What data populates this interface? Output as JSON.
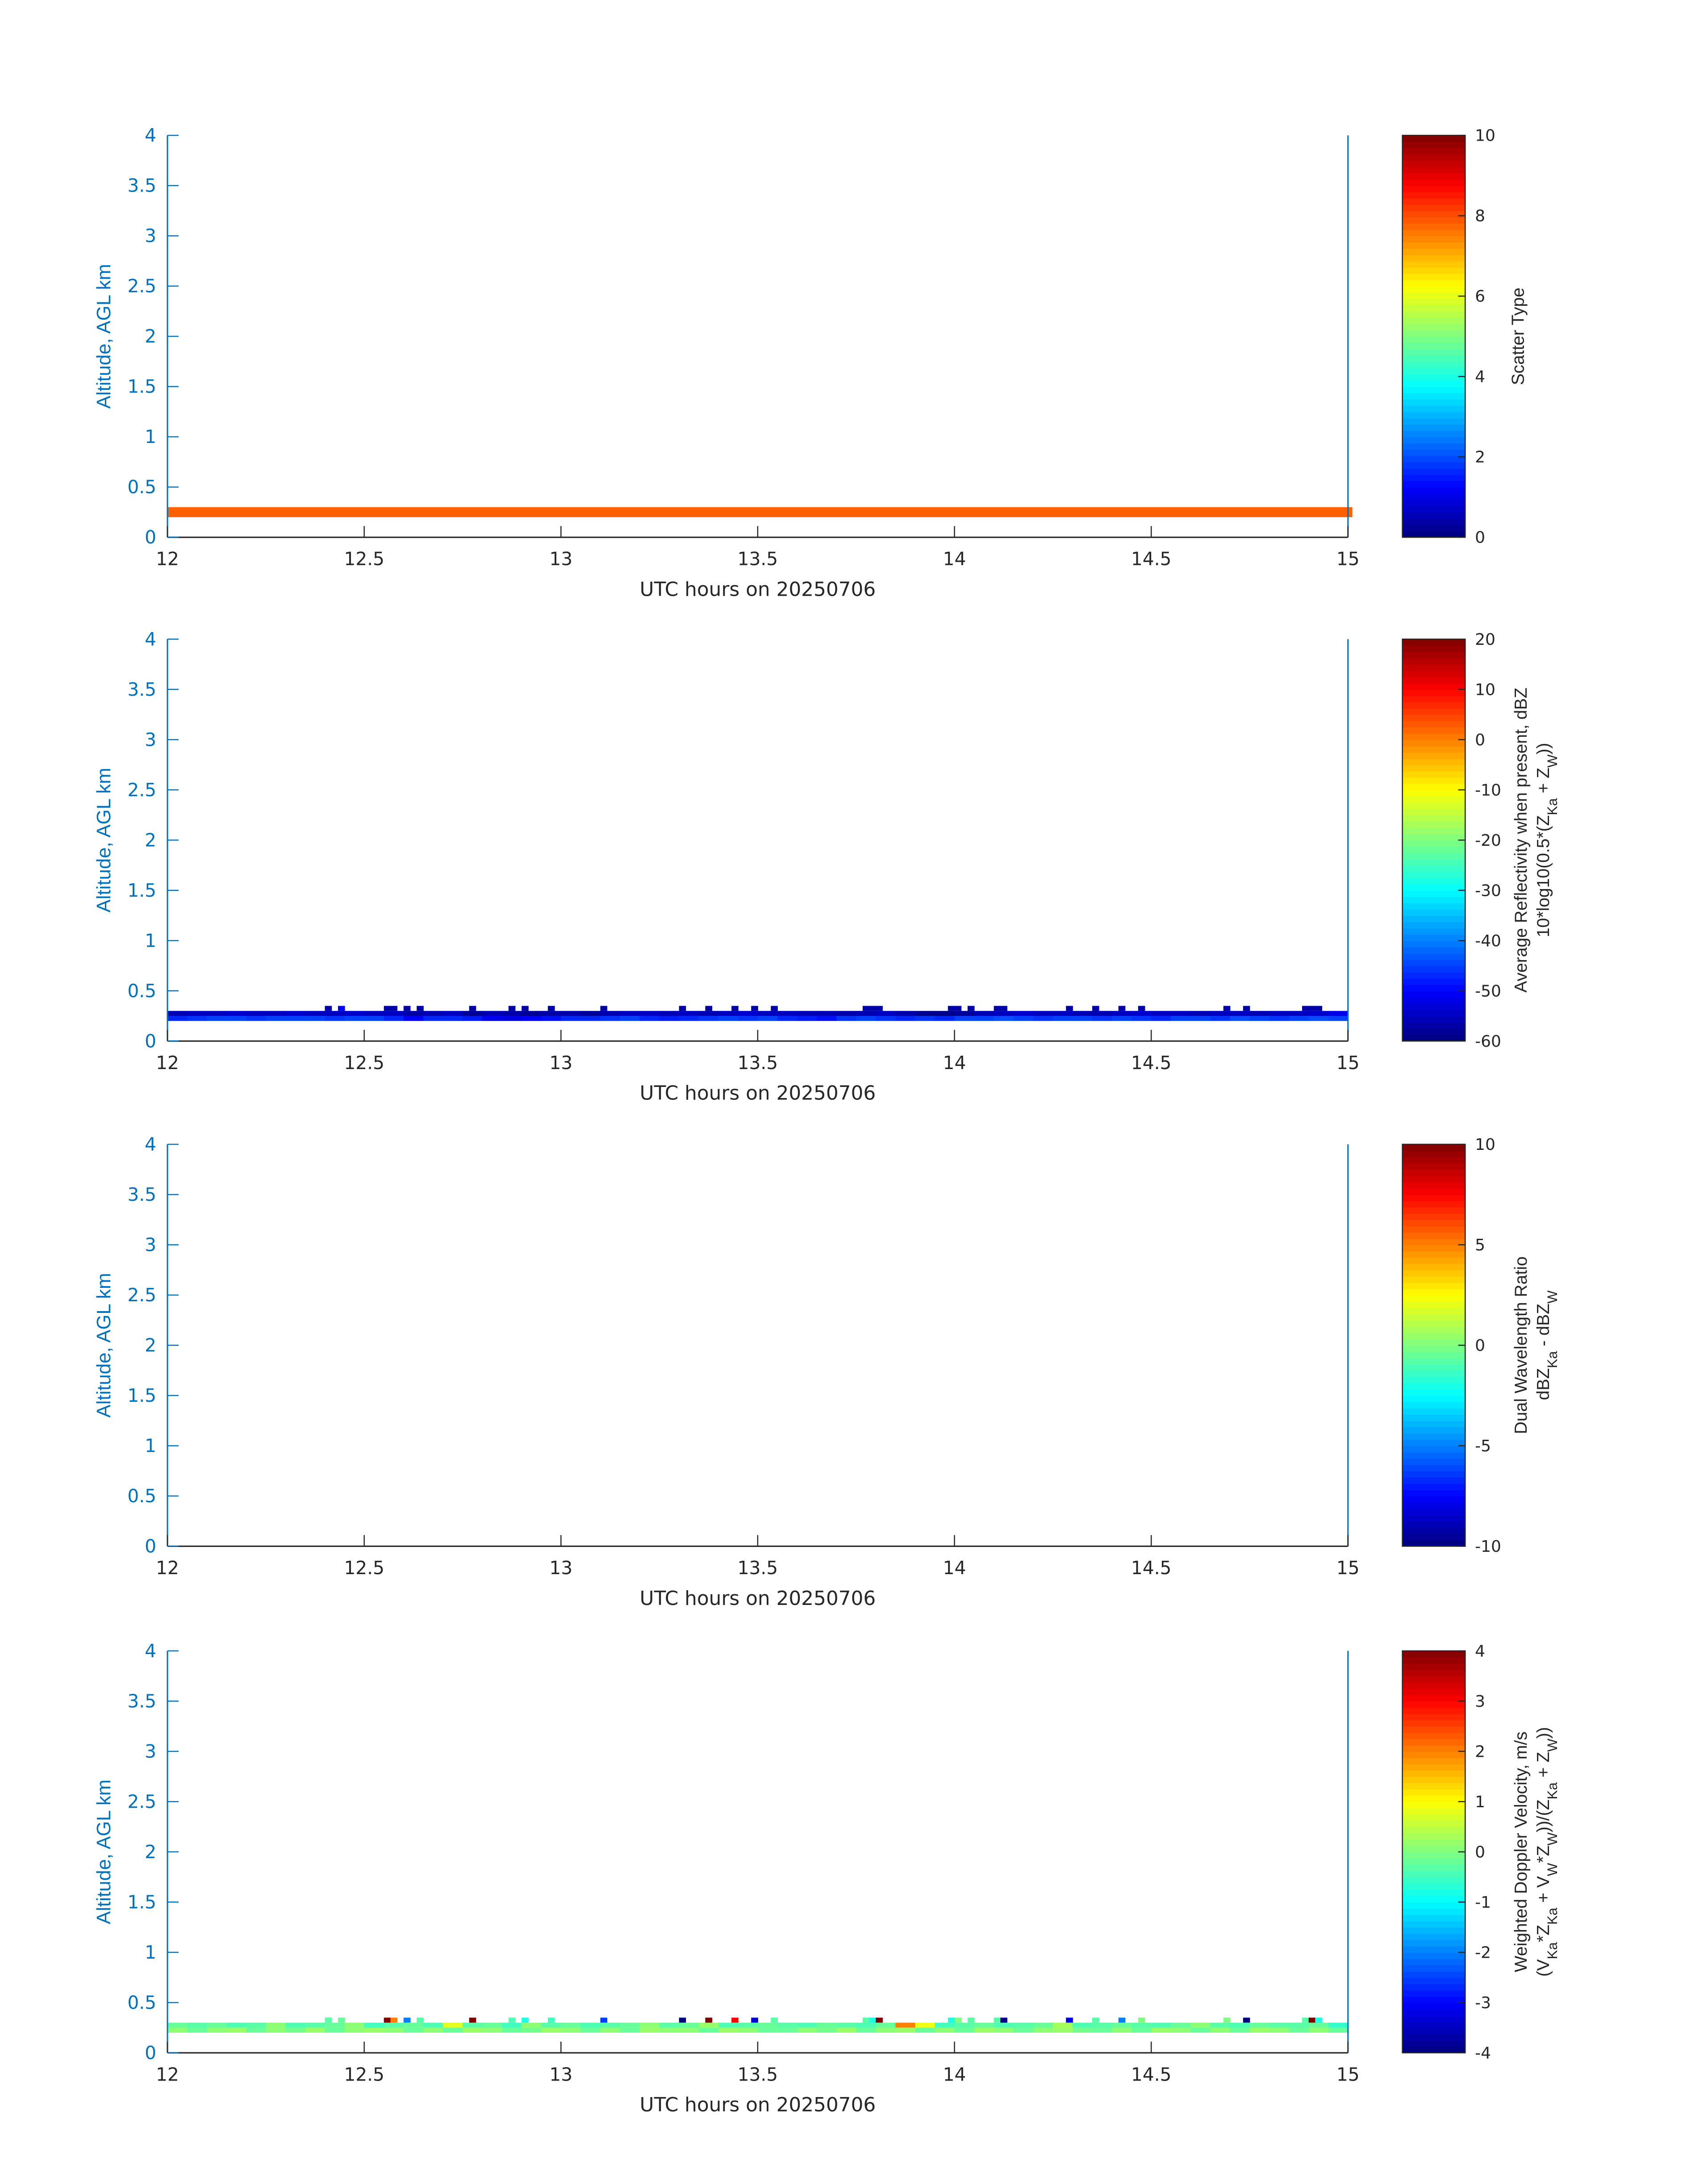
{
  "chart_data": [
    {
      "type": "heatmap",
      "title": "",
      "xlabel": "UTC hours on 20250706",
      "ylabel": "Altitude, AGL km",
      "xlim": [
        12,
        15
      ],
      "ylim": [
        0,
        4
      ],
      "xticks": [
        "12",
        "12.5",
        "13",
        "13.5",
        "14",
        "14.5",
        "15"
      ],
      "yticks": [
        "0",
        "0.5",
        "1",
        "1.5",
        "2",
        "2.5",
        "3",
        "3.5",
        "4"
      ],
      "colorbar": {
        "range": [
          0,
          10
        ],
        "ticks": [
          "0",
          "2",
          "4",
          "6",
          "8",
          "10"
        ],
        "label_lines": [
          [
            {
              "t": "Scatter Type"
            }
          ]
        ]
      },
      "layers": [
        {
          "alt_km": [
            0.2,
            0.3
          ],
          "t_start": 12,
          "bin_hours": 3.01,
          "values": [
            7.8
          ]
        }
      ],
      "spikes": null
    },
    {
      "type": "heatmap",
      "title": "",
      "xlabel": "UTC hours on 20250706",
      "ylabel": "Altitude, AGL km",
      "xlim": [
        12,
        15
      ],
      "ylim": [
        0,
        4
      ],
      "xticks": [
        "12",
        "12.5",
        "13",
        "13.5",
        "14",
        "14.5",
        "15"
      ],
      "yticks": [
        "0",
        "0.5",
        "1",
        "1.5",
        "2",
        "2.5",
        "3",
        "3.5",
        "4"
      ],
      "colorbar": {
        "range": [
          -60,
          20
        ],
        "ticks": [
          "-60",
          "-50",
          "-40",
          "-30",
          "-20",
          "-10",
          "0",
          "10",
          "20"
        ],
        "label_lines": [
          [
            {
              "t": "Average Reflectivity when present, dBZ"
            }
          ],
          [
            {
              "t": "10*log10(0.5*(Z"
            },
            {
              "t": "Ka",
              "sub": true
            },
            {
              "t": " + Z"
            },
            {
              "t": "W",
              "sub": true
            },
            {
              "t": "))"
            }
          ]
        ]
      },
      "layers": [
        {
          "alt_km": [
            0.25,
            0.3
          ],
          "t_start": 12,
          "bin_hours": 0.05,
          "values": [
            -56,
            -55,
            -55,
            -54,
            -55,
            -55,
            -54,
            -55,
            -55,
            -54,
            -55,
            -55,
            -57,
            -56,
            -55,
            -58,
            -56,
            -57,
            -58,
            -57,
            -57,
            -58,
            -56,
            -55,
            -55,
            -56,
            -55,
            -56,
            -55,
            -54,
            -55,
            -55,
            -56,
            -56,
            -57,
            -56,
            -55,
            -57,
            -59,
            -59,
            -58,
            -56,
            -55,
            -54,
            -55,
            -55,
            -56,
            -56,
            -55,
            -54,
            -55,
            -55,
            -56,
            -55,
            -55,
            -56,
            -55,
            -55,
            -54,
            -52
          ]
        },
        {
          "alt_km": [
            0.2,
            0.25
          ],
          "t_start": 12,
          "bin_hours": 0.05,
          "values": [
            -47,
            -46,
            -45,
            -45,
            -46,
            -45,
            -45,
            -45,
            -46,
            -45,
            -45,
            -47,
            -50,
            -47,
            -47,
            -48,
            -51,
            -52,
            -50,
            -49,
            -47,
            -47,
            -46,
            -45,
            -47,
            -48,
            -47,
            -46,
            -45,
            -46,
            -45,
            -47,
            -48,
            -49,
            -46,
            -45,
            -46,
            -47,
            -46,
            -47,
            -45,
            -45,
            -44,
            -45,
            -46,
            -45,
            -45,
            -46,
            -45,
            -46,
            -47,
            -45,
            -45,
            -46,
            -44,
            -45,
            -46,
            -45,
            -44,
            -45
          ]
        }
      ],
      "spikes": {
        "alt_km": [
          0.3,
          0.35
        ],
        "minutes_after_12utc": [
          24,
          26,
          33,
          34,
          36,
          38,
          46,
          52,
          54,
          58,
          66,
          78,
          82,
          86,
          89,
          92,
          106,
          107,
          108,
          119,
          120,
          122,
          126,
          127,
          137,
          141,
          145,
          148,
          161,
          164,
          173,
          174,
          175
        ],
        "values": [
          -57,
          -50,
          -57,
          -57,
          -57,
          -57,
          -57,
          -57,
          -57,
          -57,
          -57,
          -57,
          -57,
          -57,
          -57,
          -57,
          -57,
          -57,
          -57,
          -57,
          -57,
          -57,
          -57,
          -57,
          -57,
          -57,
          -57,
          -57,
          -57,
          -57,
          -57,
          -57,
          -57
        ]
      }
    },
    {
      "type": "heatmap",
      "title": "",
      "xlabel": "UTC hours on 20250706",
      "ylabel": "Altitude, AGL km",
      "xlim": [
        12,
        15
      ],
      "ylim": [
        0,
        4
      ],
      "xticks": [
        "12",
        "12.5",
        "13",
        "13.5",
        "14",
        "14.5",
        "15"
      ],
      "yticks": [
        "0",
        "0.5",
        "1",
        "1.5",
        "2",
        "2.5",
        "3",
        "3.5",
        "4"
      ],
      "colorbar": {
        "range": [
          -10,
          10
        ],
        "ticks": [
          "-10",
          "-5",
          "0",
          "5",
          "10"
        ],
        "label_lines": [
          [
            {
              "t": "Dual Wavelength Ratio"
            }
          ],
          [
            {
              "t": "dBZ"
            },
            {
              "t": "Ka",
              "sub": true
            },
            {
              "t": " - dBZ"
            },
            {
              "t": "W",
              "sub": true
            }
          ]
        ]
      },
      "layers": [],
      "spikes": null
    },
    {
      "type": "heatmap",
      "title": "",
      "xlabel": "UTC hours on 20250706",
      "ylabel": "Altitude, AGL km",
      "xlim": [
        12,
        15
      ],
      "ylim": [
        0,
        4
      ],
      "xticks": [
        "12",
        "12.5",
        "13",
        "13.5",
        "14",
        "14.5",
        "15"
      ],
      "yticks": [
        "0",
        "0.5",
        "1",
        "1.5",
        "2",
        "2.5",
        "3",
        "3.5",
        "4"
      ],
      "colorbar": {
        "range": [
          -4,
          4
        ],
        "ticks": [
          "-4",
          "-3",
          "-2",
          "-1",
          "0",
          "1",
          "2",
          "3",
          "4"
        ],
        "label_lines": [
          [
            {
              "t": "Weighted Doppler Velocity, m/s"
            }
          ],
          [
            {
              "t": "(V"
            },
            {
              "t": "Ka",
              "sub": true
            },
            {
              "t": "*Z"
            },
            {
              "t": "Ka",
              "sub": true
            },
            {
              "t": " + V"
            },
            {
              "t": "W",
              "sub": true
            },
            {
              "t": "*Z"
            },
            {
              "t": "W",
              "sub": true
            },
            {
              "t": "))/(Z"
            },
            {
              "t": "Ka",
              "sub": true
            },
            {
              "t": " + Z"
            },
            {
              "t": "W",
              "sub": true
            },
            {
              "t": "))"
            }
          ]
        ]
      },
      "layers": [
        {
          "alt_km": [
            0.25,
            0.3
          ],
          "t_start": 12,
          "bin_hours": 0.05,
          "values": [
            -0.2,
            -0.3,
            -0.2,
            -0.4,
            -0.3,
            0.1,
            -0.4,
            -0.3,
            -0.2,
            0.1,
            -0.5,
            -0.3,
            -0.2,
            -0.4,
            0.8,
            -0.3,
            -0.2,
            -0.5,
            0.1,
            -0.3,
            -0.2,
            -0.4,
            -0.3,
            -0.2,
            0.1,
            -0.3,
            -0.2,
            0.2,
            -0.4,
            -0.3,
            -0.2,
            -0.3,
            -0.4,
            -0.2,
            -0.3,
            -0.4,
            -0.2,
            2.0,
            0.9,
            -0.5,
            -0.3,
            -0.2,
            -0.4,
            -0.3,
            -0.2,
            0.3,
            -0.4,
            -0.3,
            -0.2,
            -0.3,
            -0.4,
            -0.2,
            0.1,
            -0.3,
            -0.4,
            -0.2,
            -0.3,
            -0.3,
            -0.2,
            -0.6
          ]
        },
        {
          "alt_km": [
            0.2,
            0.25
          ],
          "t_start": 12,
          "bin_hours": 0.05,
          "values": [
            0.1,
            -0.2,
            0.1,
            0.2,
            -0.2,
            0.1,
            -0.1,
            0.2,
            -0.2,
            0.1,
            0.2,
            0.1,
            -0.2,
            0.1,
            -0.2,
            0.2,
            0.1,
            -0.2,
            -0.1,
            0.2,
            0.1,
            -0.2,
            0.1,
            -0.2,
            0.2,
            0.1,
            0.1,
            -0.2,
            0.2,
            0.1,
            -0.2,
            -0.2,
            0.1,
            -0.1,
            0.2,
            -0.2,
            0.1,
            0.2,
            -0.2,
            0.1,
            -0.2,
            0.2,
            0.1,
            -0.2,
            0.1,
            0.2,
            -0.1,
            -0.2,
            0.1,
            -0.2,
            0.2,
            0.1,
            -0.2,
            0.1,
            -0.2,
            0.2,
            0.1,
            -0.2,
            0.1,
            -0.2
          ]
        }
      ],
      "spikes": {
        "alt_km": [
          0.3,
          0.35
        ],
        "minutes_after_12utc": [
          24,
          26,
          33,
          34,
          36,
          38,
          46,
          52,
          54,
          58,
          66,
          78,
          82,
          86,
          89,
          92,
          106,
          107,
          108,
          119,
          120,
          122,
          126,
          127,
          137,
          141,
          145,
          148,
          161,
          164,
          173,
          174,
          175
        ],
        "values": [
          -0.3,
          -0.2,
          4,
          2,
          -2,
          -0.3,
          4,
          -0.4,
          -0.8,
          -0.5,
          -2.5,
          -4,
          4,
          3,
          -3.3,
          -0.3,
          -0.3,
          -0.8,
          4,
          -0.8,
          0,
          -0.3,
          -0.3,
          -4,
          -3.2,
          -0.3,
          -2,
          0,
          0,
          -4,
          -0.3,
          4,
          -0.8
        ]
      }
    }
  ]
}
